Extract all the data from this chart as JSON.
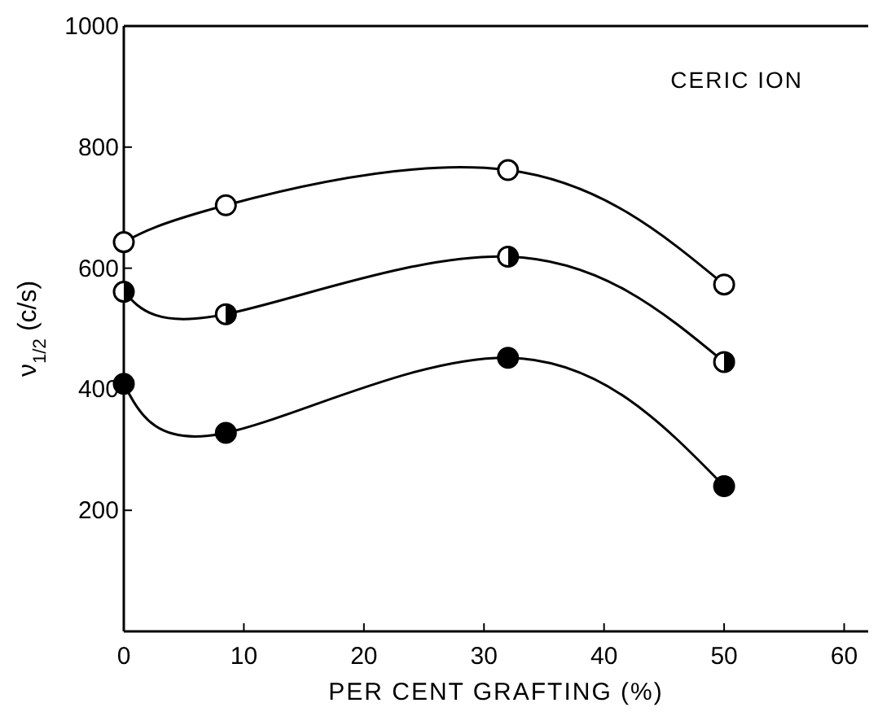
{
  "chart_data": {
    "type": "line",
    "xlabel": "PER CENT GRAFTING (%)",
    "ylabel": "ν$_{1/2}$  (c/s)",
    "annotations": [
      "CERIC ION"
    ],
    "x": [
      0,
      8.5,
      32,
      50
    ],
    "series": [
      {
        "color": "#000000",
        "values": [
          643,
          704,
          762,
          573
        ]
      },
      {
        "color": "#000000",
        "values": [
          561,
          524,
          619,
          445
        ]
      },
      {
        "color": "#000000",
        "values": [
          409,
          328,
          452,
          240
        ]
      }
    ],
    "xlim": [
      0,
      62
    ],
    "xticks": [
      0,
      10,
      20,
      30,
      40,
      50,
      60
    ],
    "ylim": [
      0,
      1000
    ],
    "yticks": [
      200,
      400,
      600,
      800,
      1000
    ],
    "marker": "circle",
    "line_style": "solid",
    "grid": false
  }
}
